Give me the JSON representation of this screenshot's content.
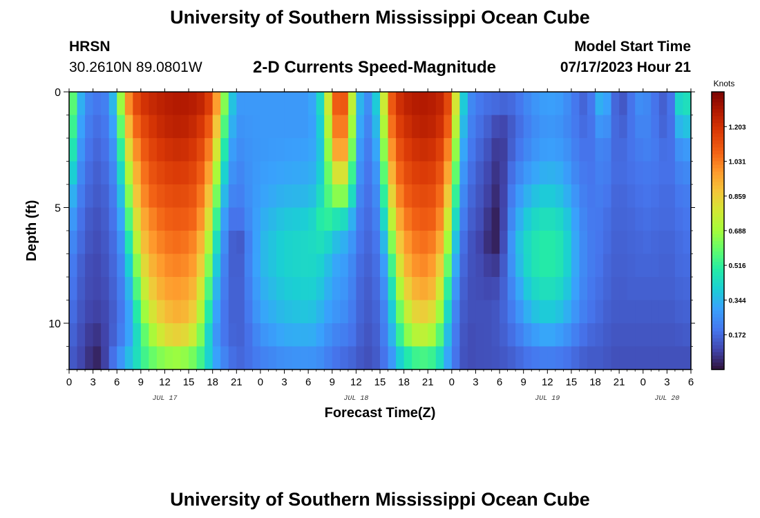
{
  "header": {
    "title": "University of Southern Mississippi Ocean Cube",
    "station_code": "HRSN",
    "station_coords": "30.2610N  89.0801W",
    "plot_title": "2-D Currents Speed-Magnitude",
    "model_label": "Model Start Time",
    "model_start": "07/17/2023 Hour 21"
  },
  "footer": {
    "title": "University of Southern Mississippi Ocean Cube"
  },
  "chart_data": {
    "type": "heatmap",
    "title": "2-D Currents Speed-Magnitude",
    "xlabel": "Forecast Time(Z)",
    "ylabel": "Depth (ft)",
    "x_range_hours": [
      0,
      78
    ],
    "x_origin": "JUL 17 00Z",
    "x_tick_labels": [
      "0",
      "3",
      "6",
      "9",
      "12",
      "15",
      "18",
      "21",
      "0",
      "3",
      "6",
      "9",
      "12",
      "15",
      "18",
      "21",
      "0",
      "3",
      "6",
      "9",
      "12",
      "15",
      "18",
      "21",
      "0",
      "3",
      "6"
    ],
    "date_labels": [
      {
        "label": "JUL 17",
        "hour": 12
      },
      {
        "label": "JUL 18",
        "hour": 36
      },
      {
        "label": "JUL 19",
        "hour": 60
      },
      {
        "label": "JUL 20",
        "hour": 75
      }
    ],
    "y_range_ft": [
      0,
      12
    ],
    "y_ticks": [
      0,
      5,
      10
    ],
    "y_tick_labels": [
      "0",
      "5",
      "10"
    ],
    "depth_levels_ft": [
      0,
      1,
      2,
      3,
      4,
      5,
      6,
      7,
      8,
      9,
      10,
      11
    ],
    "time_keyframes": [
      {
        "hour": 0,
        "speeds": [
          0.75,
          0.7,
          0.62,
          0.52,
          0.42,
          0.34,
          0.28,
          0.24,
          0.22,
          0.2,
          0.18,
          0.15
        ]
      },
      {
        "hour": 1,
        "speeds": [
          0.4,
          0.36,
          0.32,
          0.28,
          0.24,
          0.21,
          0.19,
          0.17,
          0.16,
          0.15,
          0.13,
          0.12
        ]
      },
      {
        "hour": 2,
        "speeds": [
          0.26,
          0.24,
          0.22,
          0.2,
          0.18,
          0.16,
          0.15,
          0.13,
          0.12,
          0.11,
          0.1,
          0.08
        ]
      },
      {
        "hour": 3,
        "speeds": [
          0.2,
          0.18,
          0.16,
          0.15,
          0.14,
          0.12,
          0.11,
          0.1,
          0.1,
          0.09,
          0.06,
          0.04
        ]
      },
      {
        "hour": 4,
        "speeds": [
          0.2,
          0.18,
          0.17,
          0.15,
          0.14,
          0.13,
          0.12,
          0.11,
          0.1,
          0.09,
          0.07,
          0.03
        ]
      },
      {
        "hour": 5,
        "speeds": [
          0.24,
          0.22,
          0.2,
          0.19,
          0.17,
          0.16,
          0.15,
          0.14,
          0.13,
          0.12,
          0.12,
          0.15
        ]
      },
      {
        "hour": 6,
        "speeds": [
          0.45,
          0.38,
          0.32,
          0.28,
          0.25,
          0.22,
          0.2,
          0.19,
          0.18,
          0.17,
          0.18,
          0.22
        ]
      },
      {
        "hour": 7,
        "speeds": [
          0.9,
          0.8,
          0.7,
          0.58,
          0.48,
          0.4,
          0.33,
          0.28,
          0.25,
          0.23,
          0.25,
          0.32
        ]
      },
      {
        "hour": 8,
        "speeds": [
          1.1,
          1.02,
          0.94,
          0.86,
          0.8,
          0.72,
          0.62,
          0.52,
          0.44,
          0.38,
          0.36,
          0.4
        ]
      },
      {
        "hour": 9,
        "speeds": [
          1.18,
          1.12,
          1.06,
          1.0,
          0.96,
          0.9,
          0.84,
          0.76,
          0.68,
          0.6,
          0.52,
          0.5
        ]
      },
      {
        "hour": 10,
        "speeds": [
          1.22,
          1.18,
          1.14,
          1.1,
          1.06,
          1.0,
          0.96,
          0.9,
          0.84,
          0.76,
          0.66,
          0.58
        ]
      },
      {
        "hour": 12,
        "speeds": [
          1.26,
          1.24,
          1.2,
          1.16,
          1.12,
          1.08,
          1.04,
          1.0,
          0.96,
          0.9,
          0.82,
          0.66
        ]
      },
      {
        "hour": 14,
        "speeds": [
          1.28,
          1.26,
          1.22,
          1.18,
          1.14,
          1.1,
          1.06,
          1.02,
          0.98,
          0.94,
          0.86,
          0.68
        ]
      },
      {
        "hour": 16,
        "speeds": [
          1.26,
          1.22,
          1.18,
          1.14,
          1.1,
          1.06,
          1.0,
          0.96,
          0.9,
          0.84,
          0.74,
          0.6
        ]
      },
      {
        "hour": 17,
        "speeds": [
          1.22,
          1.16,
          1.1,
          1.04,
          0.98,
          0.92,
          0.84,
          0.76,
          0.68,
          0.6,
          0.52,
          0.48
        ]
      },
      {
        "hour": 18,
        "speeds": [
          1.12,
          1.04,
          0.96,
          0.88,
          0.8,
          0.7,
          0.6,
          0.52,
          0.44,
          0.38,
          0.32,
          0.34
        ]
      },
      {
        "hour": 19,
        "speeds": [
          0.82,
          0.72,
          0.62,
          0.52,
          0.44,
          0.36,
          0.3,
          0.26,
          0.24,
          0.22,
          0.22,
          0.26
        ]
      },
      {
        "hour": 20,
        "speeds": [
          0.46,
          0.4,
          0.34,
          0.3,
          0.26,
          0.22,
          0.2,
          0.19,
          0.18,
          0.17,
          0.17,
          0.2
        ]
      },
      {
        "hour": 21,
        "speeds": [
          0.28,
          0.26,
          0.24,
          0.22,
          0.2,
          0.16,
          0.1,
          0.11,
          0.13,
          0.14,
          0.15,
          0.16
        ]
      },
      {
        "hour": 22,
        "speeds": [
          0.28,
          0.27,
          0.26,
          0.25,
          0.24,
          0.22,
          0.18,
          0.19,
          0.18,
          0.17,
          0.16,
          0.17
        ]
      },
      {
        "hour": 24,
        "speeds": [
          0.28,
          0.28,
          0.28,
          0.29,
          0.3,
          0.32,
          0.34,
          0.34,
          0.32,
          0.3,
          0.26,
          0.22
        ]
      },
      {
        "hour": 27,
        "speeds": [
          0.28,
          0.28,
          0.29,
          0.31,
          0.34,
          0.38,
          0.41,
          0.41,
          0.39,
          0.36,
          0.32,
          0.26
        ]
      },
      {
        "hour": 30,
        "speeds": [
          0.28,
          0.28,
          0.3,
          0.32,
          0.35,
          0.4,
          0.43,
          0.43,
          0.41,
          0.38,
          0.33,
          0.27
        ]
      },
      {
        "hour": 31,
        "speeds": [
          0.34,
          0.32,
          0.32,
          0.34,
          0.38,
          0.44,
          0.44,
          0.42,
          0.4,
          0.36,
          0.32,
          0.26
        ]
      },
      {
        "hour": 32,
        "speeds": [
          0.52,
          0.48,
          0.44,
          0.46,
          0.5,
          0.54,
          0.46,
          0.4,
          0.36,
          0.32,
          0.28,
          0.24
        ]
      },
      {
        "hour": 33,
        "speeds": [
          1.02,
          0.96,
          0.88,
          0.74,
          0.62,
          0.48,
          0.38,
          0.32,
          0.3,
          0.28,
          0.24,
          0.2
        ]
      },
      {
        "hour": 34,
        "speeds": [
          1.16,
          1.1,
          1.02,
          0.86,
          0.68,
          0.46,
          0.34,
          0.3,
          0.28,
          0.26,
          0.22,
          0.18
        ]
      },
      {
        "hour": 35,
        "speeds": [
          1.04,
          0.96,
          0.88,
          0.74,
          0.6,
          0.42,
          0.32,
          0.28,
          0.26,
          0.24,
          0.21,
          0.17
        ]
      },
      {
        "hour": 36,
        "speeds": [
          0.44,
          0.4,
          0.36,
          0.32,
          0.28,
          0.24,
          0.22,
          0.2,
          0.19,
          0.18,
          0.17,
          0.15
        ]
      },
      {
        "hour": 37,
        "speeds": [
          0.24,
          0.22,
          0.2,
          0.19,
          0.18,
          0.17,
          0.16,
          0.15,
          0.14,
          0.14,
          0.13,
          0.12
        ]
      },
      {
        "hour": 38,
        "speeds": [
          0.26,
          0.24,
          0.22,
          0.2,
          0.19,
          0.18,
          0.17,
          0.16,
          0.15,
          0.14,
          0.13,
          0.12
        ]
      },
      {
        "hour": 39,
        "speeds": [
          0.52,
          0.46,
          0.4,
          0.34,
          0.3,
          0.26,
          0.22,
          0.2,
          0.19,
          0.18,
          0.17,
          0.16
        ]
      },
      {
        "hour": 40,
        "speeds": [
          1.02,
          0.96,
          0.9,
          0.82,
          0.72,
          0.6,
          0.48,
          0.38,
          0.32,
          0.28,
          0.26,
          0.22
        ]
      },
      {
        "hour": 41,
        "speeds": [
          1.18,
          1.14,
          1.08,
          1.02,
          0.96,
          0.88,
          0.8,
          0.7,
          0.6,
          0.5,
          0.42,
          0.34
        ]
      },
      {
        "hour": 42,
        "speeds": [
          1.24,
          1.2,
          1.16,
          1.12,
          1.08,
          1.02,
          0.96,
          0.9,
          0.82,
          0.72,
          0.62,
          0.46
        ]
      },
      {
        "hour": 44,
        "speeds": [
          1.28,
          1.26,
          1.22,
          1.18,
          1.14,
          1.1,
          1.06,
          1.02,
          0.96,
          0.88,
          0.76,
          0.56
        ]
      },
      {
        "hour": 46,
        "speeds": [
          1.26,
          1.24,
          1.2,
          1.16,
          1.12,
          1.08,
          1.02,
          0.96,
          0.9,
          0.8,
          0.68,
          0.52
        ]
      },
      {
        "hour": 47,
        "speeds": [
          1.22,
          1.18,
          1.12,
          1.06,
          1.0,
          0.94,
          0.86,
          0.76,
          0.66,
          0.56,
          0.46,
          0.38
        ]
      },
      {
        "hour": 48,
        "speeds": [
          1.06,
          1.0,
          0.92,
          0.84,
          0.74,
          0.62,
          0.52,
          0.44,
          0.36,
          0.3,
          0.26,
          0.24
        ]
      },
      {
        "hour": 49,
        "speeds": [
          0.52,
          0.46,
          0.4,
          0.34,
          0.3,
          0.26,
          0.22,
          0.2,
          0.18,
          0.16,
          0.15,
          0.14
        ]
      },
      {
        "hour": 50,
        "speeds": [
          0.26,
          0.24,
          0.22,
          0.2,
          0.18,
          0.16,
          0.14,
          0.13,
          0.12,
          0.12,
          0.11,
          0.11
        ]
      },
      {
        "hour": 52,
        "speeds": [
          0.18,
          0.16,
          0.14,
          0.12,
          0.11,
          0.1,
          0.08,
          0.1,
          0.11,
          0.12,
          0.12,
          0.12
        ]
      },
      {
        "hour": 53,
        "speeds": [
          0.18,
          0.14,
          0.11,
          0.09,
          0.07,
          0.04,
          0.03,
          0.07,
          0.1,
          0.12,
          0.12,
          0.12
        ]
      },
      {
        "hour": 54,
        "speeds": [
          0.16,
          0.08,
          0.05,
          0.04,
          0.03,
          0.02,
          0.03,
          0.08,
          0.12,
          0.14,
          0.14,
          0.13
        ]
      },
      {
        "hour": 55,
        "speeds": [
          0.16,
          0.12,
          0.12,
          0.14,
          0.16,
          0.18,
          0.2,
          0.2,
          0.19,
          0.18,
          0.16,
          0.14
        ]
      },
      {
        "hour": 56,
        "speeds": [
          0.18,
          0.16,
          0.18,
          0.22,
          0.26,
          0.3,
          0.34,
          0.32,
          0.28,
          0.24,
          0.2,
          0.16
        ]
      },
      {
        "hour": 58,
        "speeds": [
          0.26,
          0.24,
          0.26,
          0.3,
          0.36,
          0.42,
          0.46,
          0.46,
          0.42,
          0.36,
          0.28,
          0.2
        ]
      },
      {
        "hour": 60,
        "speeds": [
          0.3,
          0.28,
          0.3,
          0.34,
          0.4,
          0.46,
          0.5,
          0.5,
          0.46,
          0.4,
          0.32,
          0.22
        ]
      },
      {
        "hour": 62,
        "speeds": [
          0.28,
          0.26,
          0.28,
          0.32,
          0.36,
          0.42,
          0.46,
          0.46,
          0.42,
          0.36,
          0.28,
          0.2
        ]
      },
      {
        "hour": 63,
        "speeds": [
          0.22,
          0.22,
          0.24,
          0.26,
          0.3,
          0.34,
          0.36,
          0.36,
          0.34,
          0.3,
          0.24,
          0.18
        ]
      },
      {
        "hour": 64,
        "speeds": [
          0.18,
          0.19,
          0.2,
          0.22,
          0.24,
          0.26,
          0.27,
          0.27,
          0.26,
          0.24,
          0.2,
          0.16
        ]
      },
      {
        "hour": 65,
        "speeds": [
          0.14,
          0.16,
          0.18,
          0.19,
          0.2,
          0.21,
          0.22,
          0.22,
          0.21,
          0.2,
          0.17,
          0.14
        ]
      },
      {
        "hour": 66,
        "speeds": [
          0.26,
          0.22,
          0.2,
          0.2,
          0.2,
          0.2,
          0.2,
          0.2,
          0.19,
          0.18,
          0.16,
          0.14
        ]
      },
      {
        "hour": 67,
        "speeds": [
          0.4,
          0.32,
          0.26,
          0.24,
          0.22,
          0.2,
          0.19,
          0.18,
          0.17,
          0.16,
          0.15,
          0.14
        ]
      },
      {
        "hour": 68,
        "speeds": [
          0.2,
          0.19,
          0.18,
          0.18,
          0.17,
          0.16,
          0.16,
          0.15,
          0.15,
          0.14,
          0.13,
          0.12
        ]
      },
      {
        "hour": 69,
        "speeds": [
          0.13,
          0.15,
          0.16,
          0.17,
          0.16,
          0.16,
          0.15,
          0.15,
          0.14,
          0.14,
          0.13,
          0.12
        ]
      },
      {
        "hour": 70,
        "speeds": [
          0.14,
          0.16,
          0.18,
          0.18,
          0.17,
          0.16,
          0.16,
          0.15,
          0.15,
          0.14,
          0.13,
          0.12
        ]
      },
      {
        "hour": 71,
        "speeds": [
          0.24,
          0.22,
          0.2,
          0.19,
          0.18,
          0.17,
          0.16,
          0.16,
          0.15,
          0.14,
          0.13,
          0.12
        ]
      },
      {
        "hour": 72,
        "speeds": [
          0.26,
          0.24,
          0.22,
          0.2,
          0.19,
          0.18,
          0.17,
          0.16,
          0.15,
          0.14,
          0.13,
          0.12
        ]
      },
      {
        "hour": 73,
        "speeds": [
          0.22,
          0.22,
          0.22,
          0.2,
          0.19,
          0.18,
          0.17,
          0.16,
          0.15,
          0.14,
          0.13,
          0.12
        ]
      },
      {
        "hour": 74,
        "speeds": [
          0.16,
          0.17,
          0.19,
          0.19,
          0.18,
          0.17,
          0.16,
          0.16,
          0.15,
          0.14,
          0.13,
          0.12
        ]
      },
      {
        "hour": 75,
        "speeds": [
          0.14,
          0.15,
          0.17,
          0.18,
          0.17,
          0.17,
          0.16,
          0.15,
          0.15,
          0.14,
          0.13,
          0.12
        ]
      },
      {
        "hour": 76,
        "speeds": [
          0.24,
          0.22,
          0.2,
          0.19,
          0.18,
          0.17,
          0.16,
          0.16,
          0.15,
          0.14,
          0.13,
          0.12
        ]
      },
      {
        "hour": 77,
        "speeds": [
          0.6,
          0.46,
          0.32,
          0.26,
          0.22,
          0.2,
          0.19,
          0.18,
          0.17,
          0.16,
          0.14,
          0.12
        ]
      },
      {
        "hour": 78,
        "speeds": [
          0.3,
          0.28,
          0.24,
          0.22,
          0.2,
          0.19,
          0.18,
          0.17,
          0.16,
          0.15,
          0.14,
          0.12
        ]
      }
    ],
    "colorbar": {
      "label": "Knots",
      "range": [
        0,
        1.375
      ],
      "ticks": [
        0.172,
        0.344,
        0.516,
        0.688,
        0.859,
        1.031,
        1.203
      ],
      "tick_labels": [
        "0.172",
        "0.344",
        "0.516",
        "0.688",
        "0.859",
        "1.031",
        "1.203"
      ],
      "colormap": "turbo"
    }
  }
}
